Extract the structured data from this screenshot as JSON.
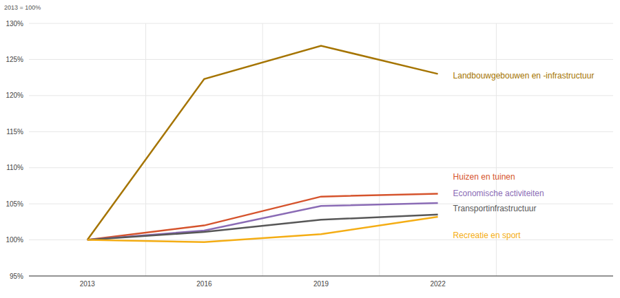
{
  "chart_data": {
    "type": "line",
    "subtitle": "2013 = 100%",
    "x": [
      2013,
      2016,
      2019,
      2022
    ],
    "xlim": [
      2011.5,
      2026.5
    ],
    "xticks": [
      2013,
      2016,
      2019,
      2022
    ],
    "ylim": [
      95,
      130
    ],
    "yticks": [
      {
        "value": 95,
        "label": "95%"
      },
      {
        "value": 100,
        "label": "100%"
      },
      {
        "value": 105,
        "label": "105%"
      },
      {
        "value": 110,
        "label": "110%"
      },
      {
        "value": 115,
        "label": "115%"
      },
      {
        "value": 120,
        "label": "120%"
      },
      {
        "value": 125,
        "label": "125%"
      },
      {
        "value": 130,
        "label": "130%"
      }
    ],
    "grid": true,
    "series": [
      {
        "name": "Landbouwgebouwen en -infrastructuur",
        "color": "#a57400",
        "values": [
          100,
          122.3,
          126.9,
          123.0
        ]
      },
      {
        "name": "Huizen en tuinen",
        "color": "#d5532c",
        "values": [
          100,
          102.0,
          106.0,
          106.4
        ]
      },
      {
        "name": "Economische activiteiten",
        "color": "#8a6bb5",
        "values": [
          100,
          101.3,
          104.7,
          105.1
        ]
      },
      {
        "name": "Transportinfrastructuur",
        "color": "#575757",
        "values": [
          100,
          101.1,
          102.8,
          103.5
        ]
      },
      {
        "name": "Recreatie en sport",
        "color": "#f4ad14",
        "values": [
          100,
          99.7,
          100.8,
          103.2
        ]
      }
    ]
  }
}
